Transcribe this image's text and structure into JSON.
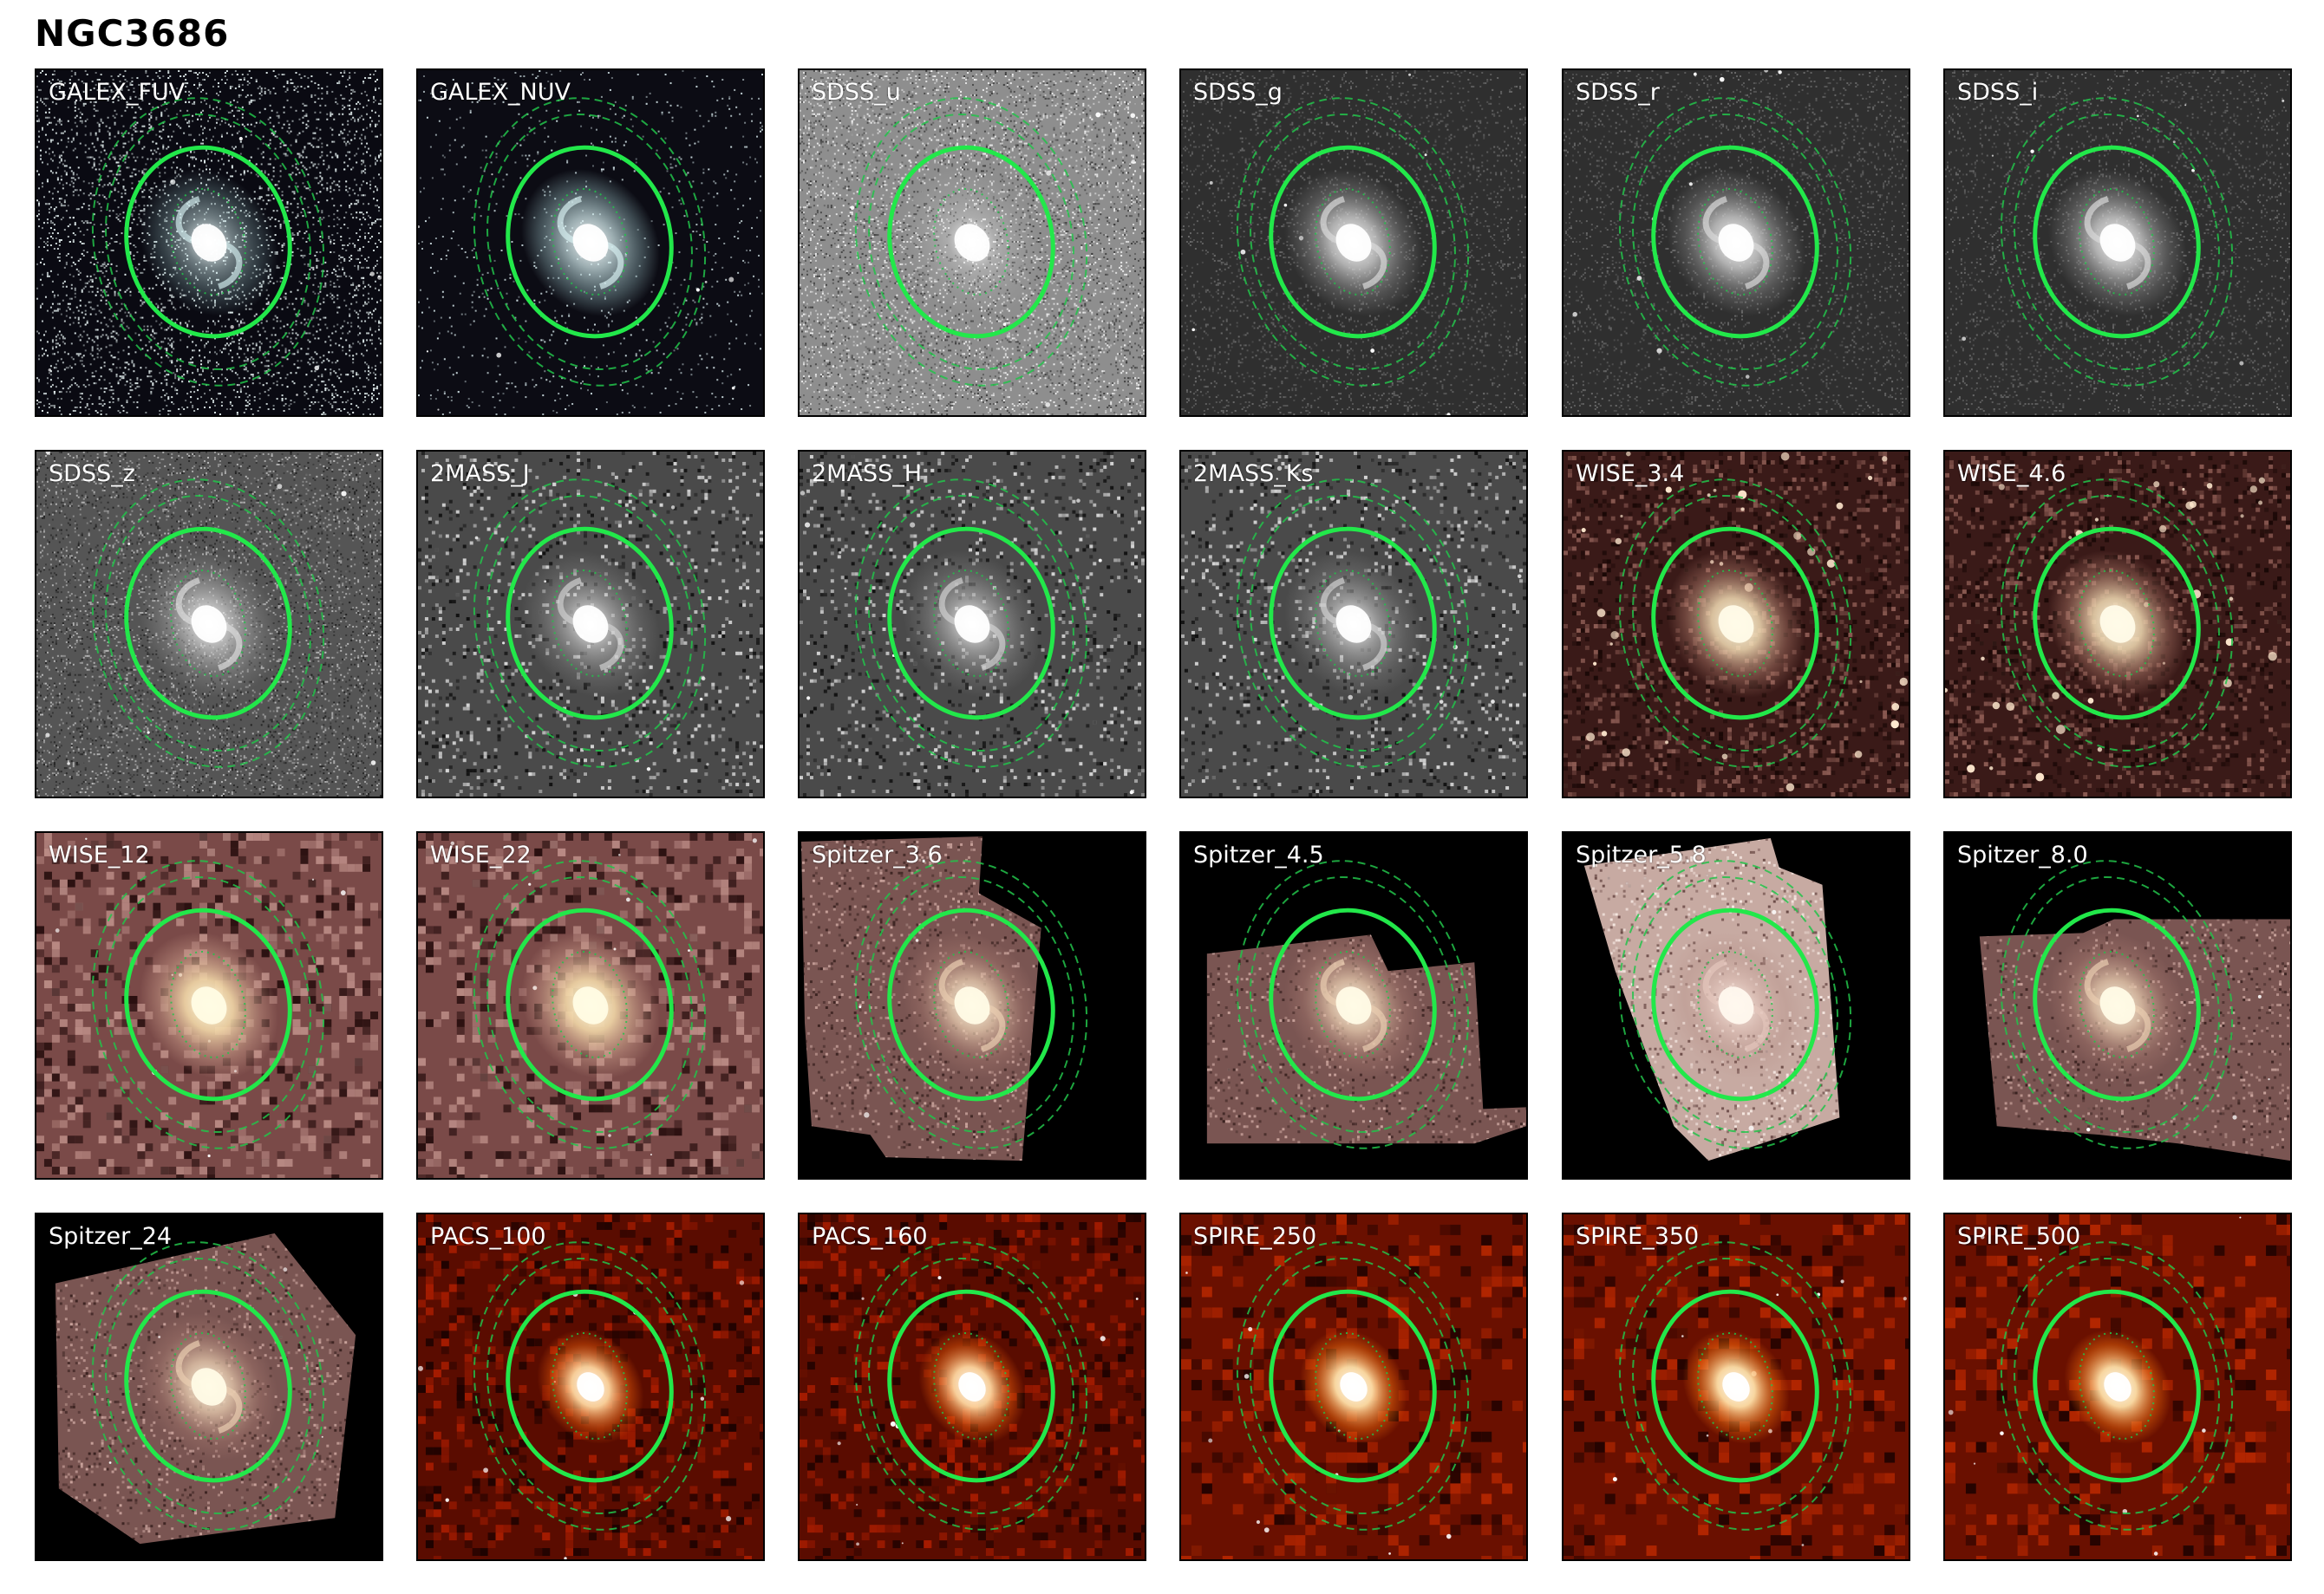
{
  "figure": {
    "title": "NGC3686"
  },
  "colors": {
    "aperture": "#22e84a",
    "annulus": "#22c34a"
  },
  "panels": [
    {
      "label": "GALEX_FUV",
      "style": "fuv"
    },
    {
      "label": "GALEX_NUV",
      "style": "nuv"
    },
    {
      "label": "SDSS_u",
      "style": "sdss_u"
    },
    {
      "label": "SDSS_g",
      "style": "gray"
    },
    {
      "label": "SDSS_r",
      "style": "gray"
    },
    {
      "label": "SDSS_i",
      "style": "gray"
    },
    {
      "label": "SDSS_z",
      "style": "gray_noisy"
    },
    {
      "label": "2MASS_J",
      "style": "twomass"
    },
    {
      "label": "2MASS_H",
      "style": "twomass"
    },
    {
      "label": "2MASS_Ks",
      "style": "twomass"
    },
    {
      "label": "WISE_3.4",
      "style": "wise_short"
    },
    {
      "label": "WISE_4.6",
      "style": "wise_short"
    },
    {
      "label": "WISE_12",
      "style": "wise_long"
    },
    {
      "label": "WISE_22",
      "style": "wise_long"
    },
    {
      "label": "Spitzer_3.6",
      "style": "spitzer",
      "mosaic": "tilt_a"
    },
    {
      "label": "Spitzer_4.5",
      "style": "spitzer",
      "mosaic": "tilt_b"
    },
    {
      "label": "Spitzer_5.8",
      "style": "spitzer_bright",
      "mosaic": "tilt_c"
    },
    {
      "label": "Spitzer_8.0",
      "style": "spitzer",
      "mosaic": "tilt_d"
    },
    {
      "label": "Spitzer_24",
      "style": "spitzer",
      "mosaic": "tilt_e"
    },
    {
      "label": "PACS_100",
      "style": "herschel"
    },
    {
      "label": "PACS_160",
      "style": "herschel"
    },
    {
      "label": "SPIRE_250",
      "style": "herschel_smooth"
    },
    {
      "label": "SPIRE_350",
      "style": "herschel_smooth"
    },
    {
      "label": "SPIRE_500",
      "style": "herschel_smooth"
    }
  ]
}
